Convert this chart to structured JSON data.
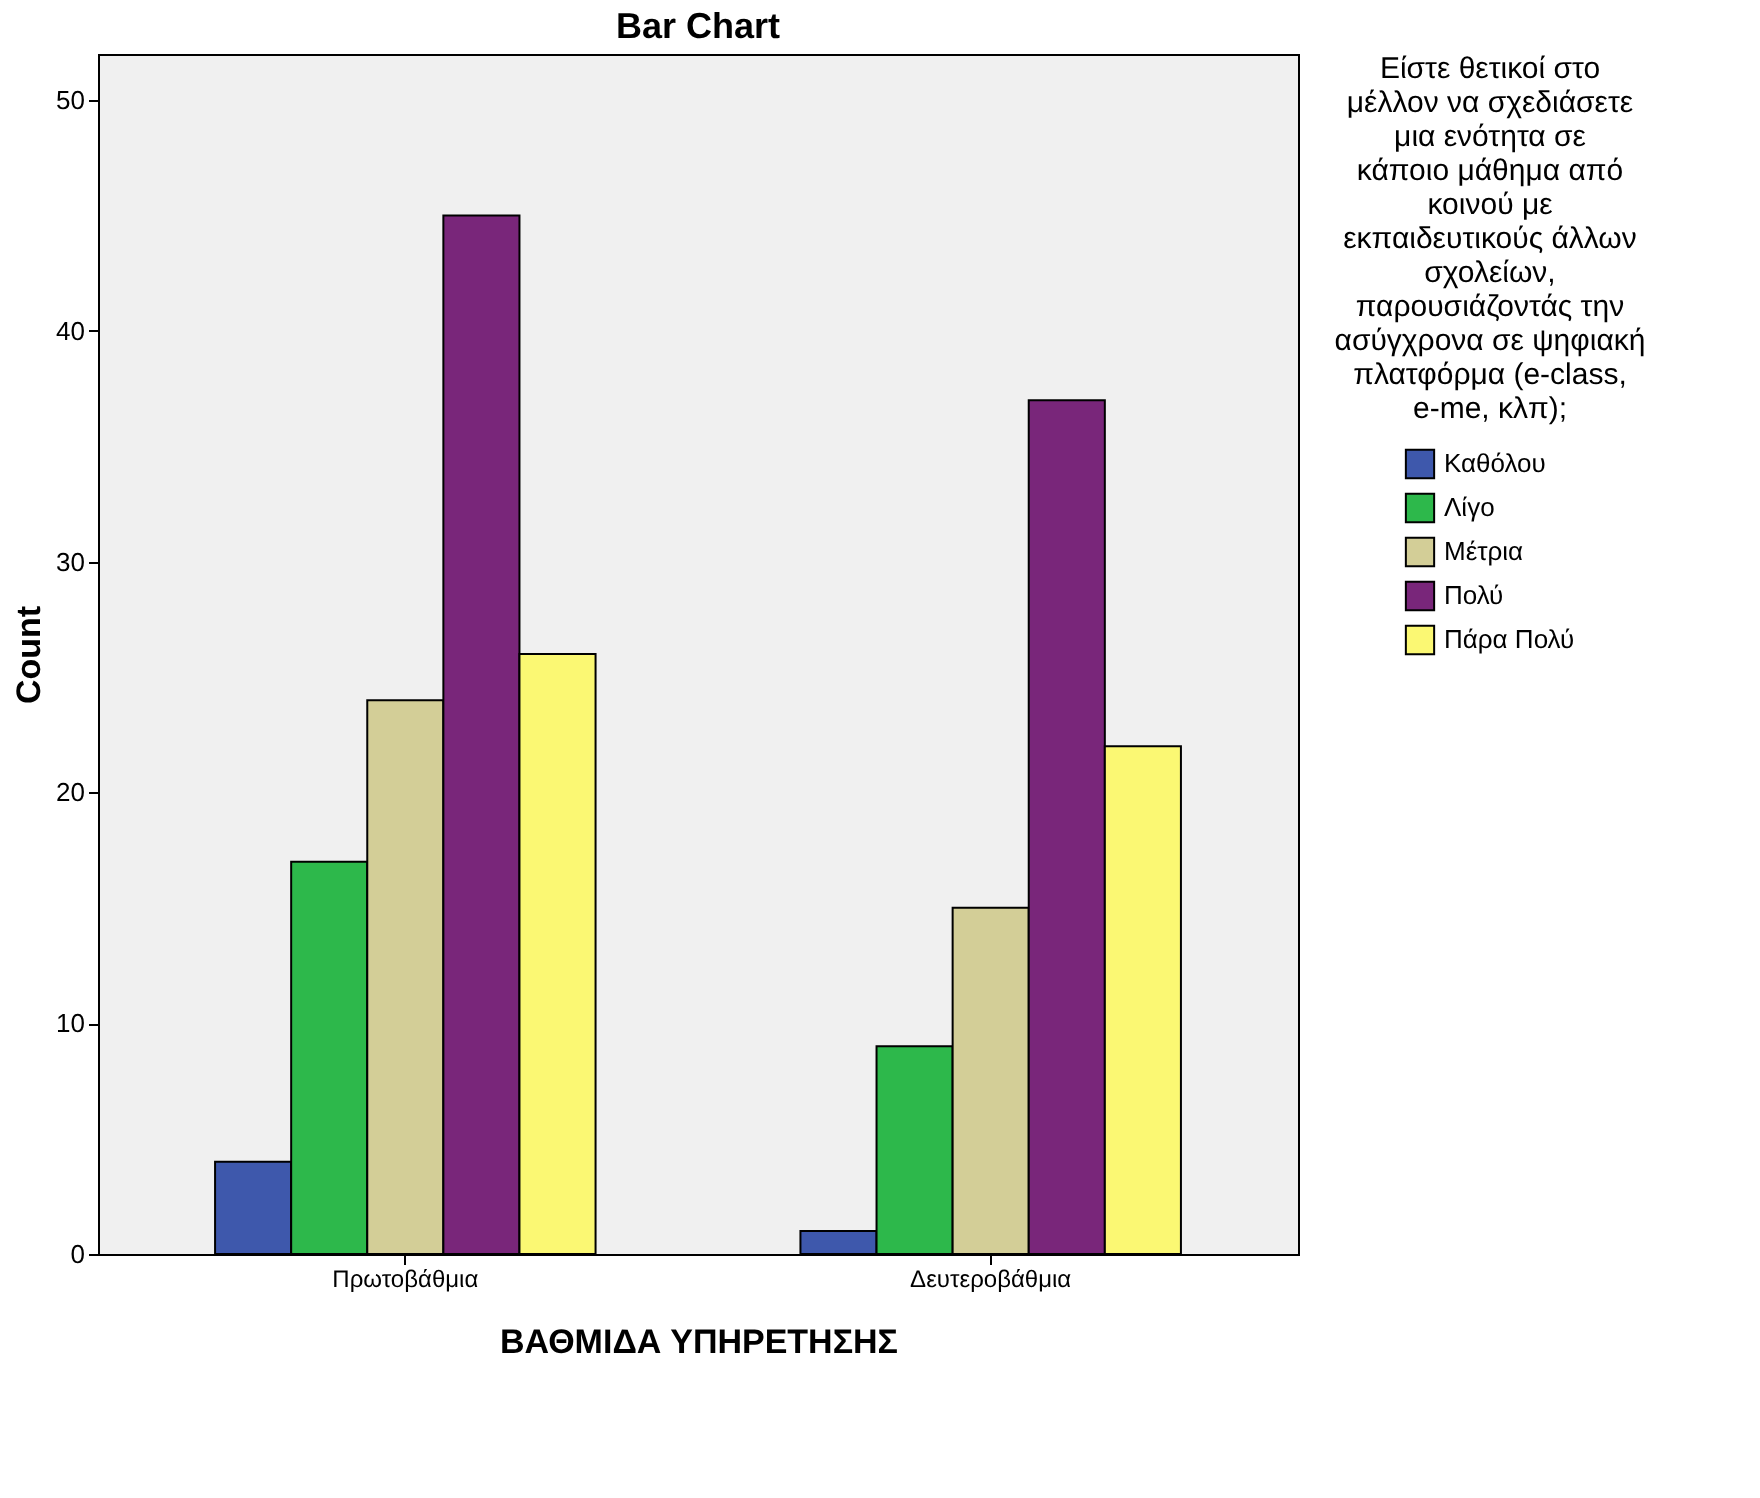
{
  "chart_data": {
    "type": "bar",
    "title": "Bar Chart",
    "xlabel": "ΒΑΘΜΙΔΑ ΥΠΗΡΕΤΗΣΗΣ",
    "ylabel": "Count",
    "legend_title": "Είστε θετικοί στο μέλλον να σχεδιάσετε μια ενότητα σε κάποιο μάθημα από κοινού με εκπαιδευτικούς άλλων σχολείων, παρουσιάζοντάς την ασύγχρονα σε ψηφιακή πλατφόρμα (e-class, e-me, κλπ);",
    "categories": [
      "Πρωτοβάθμια",
      "Δευτεροβάθμια"
    ],
    "series": [
      {
        "name": "Καθόλου",
        "color": "#3e58ac",
        "values": [
          4,
          1
        ]
      },
      {
        "name": "Λίγο",
        "color": "#2db84b",
        "values": [
          17,
          9
        ]
      },
      {
        "name": "Μέτρια",
        "color": "#d3ce97",
        "values": [
          24,
          15
        ]
      },
      {
        "name": "Πολύ",
        "color": "#79267a",
        "values": [
          45,
          37
        ]
      },
      {
        "name": "Πάρα Πολύ",
        "color": "#fbf873",
        "values": [
          26,
          22
        ]
      }
    ],
    "ylim": [
      0,
      52
    ],
    "yticks": [
      0,
      10,
      20,
      30,
      40,
      50
    ],
    "grid": false,
    "legend": "right"
  }
}
